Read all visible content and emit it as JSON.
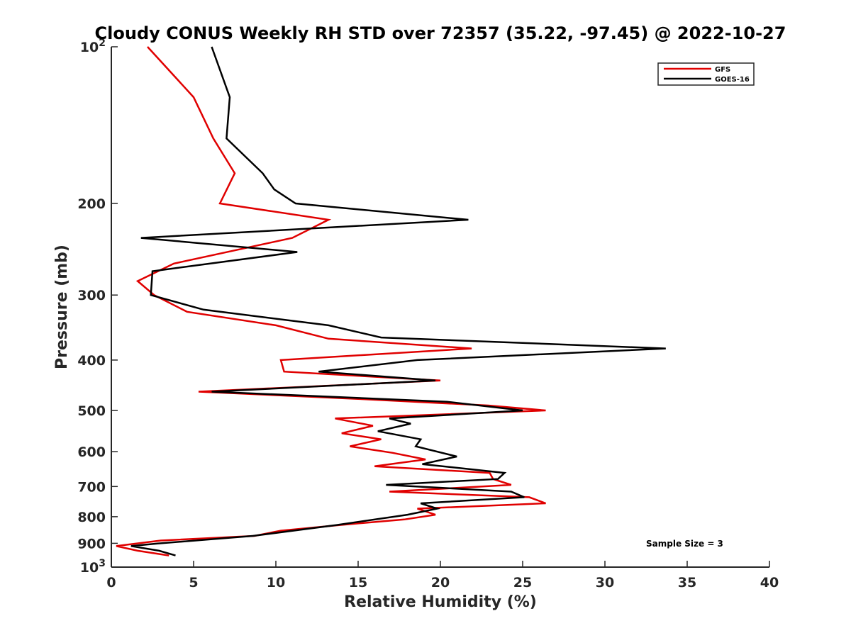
{
  "chart_data": {
    "type": "line",
    "title": "Cloudy CONUS Weekly RH STD over 72357 (35.22, -97.45) @ 2022-10-27",
    "xlabel": "Relative Humidity (%)",
    "ylabel": "Pressure (mb)",
    "xlim": [
      0,
      40
    ],
    "ylim": [
      100,
      1000
    ],
    "y_scale": "log",
    "y_reversed": true,
    "grid": false,
    "legend_position": "top-right",
    "x_ticks": [
      0,
      5,
      10,
      15,
      20,
      25,
      30,
      35,
      40
    ],
    "x_tick_labels": [
      "0",
      "5",
      "10",
      "15",
      "20",
      "25",
      "30",
      "35",
      "40"
    ],
    "y_ticks": [
      100,
      200,
      300,
      400,
      500,
      600,
      700,
      800,
      900,
      1000
    ],
    "y_tick_labels": [
      {
        "base": "10",
        "exp": "2"
      },
      {
        "base": "200",
        "exp": ""
      },
      {
        "base": "300",
        "exp": ""
      },
      {
        "base": "400",
        "exp": ""
      },
      {
        "base": "500",
        "exp": ""
      },
      {
        "base": "600",
        "exp": ""
      },
      {
        "base": "700",
        "exp": ""
      },
      {
        "base": "800",
        "exp": ""
      },
      {
        "base": "900",
        "exp": ""
      },
      {
        "base": "10",
        "exp": "3"
      }
    ],
    "series": [
      {
        "name": "GFS",
        "color": "#e00000",
        "points": [
          [
            2.2,
            100
          ],
          [
            5.0,
            125
          ],
          [
            6.2,
            150
          ],
          [
            7.5,
            175
          ],
          [
            6.6,
            200
          ],
          [
            13.2,
            215
          ],
          [
            11.0,
            233
          ],
          [
            3.8,
            261
          ],
          [
            1.6,
            282
          ],
          [
            2.6,
            300
          ],
          [
            4.6,
            323
          ],
          [
            10.0,
            343
          ],
          [
            13.2,
            364
          ],
          [
            21.9,
            380
          ],
          [
            10.3,
            400
          ],
          [
            10.5,
            421
          ],
          [
            20.0,
            438
          ],
          [
            5.3,
            460
          ],
          [
            15.0,
            475
          ],
          [
            22.9,
            489
          ],
          [
            26.4,
            500
          ],
          [
            13.6,
            518
          ],
          [
            15.9,
            535
          ],
          [
            14.0,
            553
          ],
          [
            16.4,
            568
          ],
          [
            14.5,
            586
          ],
          [
            17.1,
            603
          ],
          [
            19.1,
            621
          ],
          [
            16.0,
            640
          ],
          [
            23.0,
            659
          ],
          [
            23.2,
            677
          ],
          [
            24.3,
            695
          ],
          [
            16.9,
            716
          ],
          [
            25.4,
            734
          ],
          [
            26.4,
            754
          ],
          [
            18.6,
            772
          ],
          [
            19.7,
            793
          ],
          [
            17.8,
            810
          ],
          [
            13.9,
            830
          ],
          [
            10.3,
            851
          ],
          [
            8.7,
            871
          ],
          [
            3.0,
            889
          ],
          [
            0.3,
            911
          ],
          [
            1.6,
            930
          ],
          [
            3.5,
            950
          ]
        ]
      },
      {
        "name": "GOES-16",
        "color": "#000000",
        "points": [
          [
            6.1,
            100
          ],
          [
            7.2,
            125
          ],
          [
            7.0,
            150
          ],
          [
            9.2,
            175
          ],
          [
            9.9,
            188
          ],
          [
            11.2,
            200
          ],
          [
            21.7,
            215
          ],
          [
            1.8,
            233
          ],
          [
            11.3,
            248
          ],
          [
            2.5,
            270
          ],
          [
            2.4,
            300
          ],
          [
            5.6,
            320
          ],
          [
            13.2,
            343
          ],
          [
            16.4,
            362
          ],
          [
            33.7,
            380
          ],
          [
            18.6,
            400
          ],
          [
            12.6,
            421
          ],
          [
            19.7,
            438
          ],
          [
            6.1,
            460
          ],
          [
            20.4,
            481
          ],
          [
            25.0,
            500
          ],
          [
            16.9,
            518
          ],
          [
            18.2,
            530
          ],
          [
            16.2,
            548
          ],
          [
            18.8,
            568
          ],
          [
            18.5,
            586
          ],
          [
            21.0,
            613
          ],
          [
            18.9,
            634
          ],
          [
            23.9,
            659
          ],
          [
            23.5,
            677
          ],
          [
            16.7,
            695
          ],
          [
            24.3,
            716
          ],
          [
            25.1,
            734
          ],
          [
            18.8,
            754
          ],
          [
            19.8,
            772
          ],
          [
            18.0,
            793
          ],
          [
            13.7,
            830
          ],
          [
            8.6,
            871
          ],
          [
            2.8,
            901
          ],
          [
            1.2,
            911
          ],
          [
            2.9,
            930
          ],
          [
            3.9,
            950
          ]
        ]
      }
    ],
    "annotations": [
      {
        "text": "Sample Size = 3",
        "x": 37.5,
        "y": 900
      }
    ]
  }
}
